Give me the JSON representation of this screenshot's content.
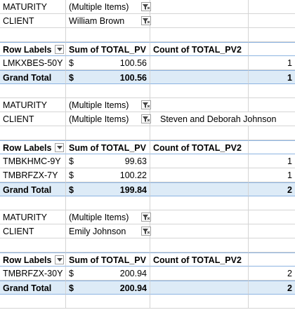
{
  "blocks": [
    {
      "filters": [
        {
          "label": "MATURITY",
          "value": "(Multiple Items)"
        },
        {
          "label": "CLIENT",
          "value": "William Brown"
        }
      ],
      "note": "",
      "headers": {
        "row_labels": "Row Labels",
        "sum": "Sum of TOTAL_PV",
        "count": "Count of TOTAL_PV2"
      },
      "rows": [
        {
          "label": "LMKXBES-50Y",
          "currency": "$",
          "sum": "100.56",
          "count": "1"
        }
      ],
      "total": {
        "label": "Grand Total",
        "currency": "$",
        "sum": "100.56",
        "count": "1"
      }
    },
    {
      "filters": [
        {
          "label": "MATURITY",
          "value": "(Multiple Items)"
        },
        {
          "label": "CLIENT",
          "value": "(Multiple Items)"
        }
      ],
      "note": "Steven and Deborah Johnson",
      "headers": {
        "row_labels": "Row Labels",
        "sum": "Sum of TOTAL_PV",
        "count": "Count of TOTAL_PV2"
      },
      "rows": [
        {
          "label": "TMBKHMC-9Y",
          "currency": "$",
          "sum": "99.63",
          "count": "1"
        },
        {
          "label": "TMBRFZX-7Y",
          "currency": "$",
          "sum": "100.22",
          "count": "1"
        }
      ],
      "total": {
        "label": "Grand Total",
        "currency": "$",
        "sum": "199.84",
        "count": "2"
      }
    },
    {
      "filters": [
        {
          "label": "MATURITY",
          "value": "(Multiple Items)"
        },
        {
          "label": "CLIENT",
          "value": "Emily Johnson"
        }
      ],
      "note": "",
      "headers": {
        "row_labels": "Row Labels",
        "sum": "Sum of TOTAL_PV",
        "count": "Count of TOTAL_PV2"
      },
      "rows": [
        {
          "label": "TMBRFZX-30Y",
          "currency": "$",
          "sum": "200.94",
          "count": "2"
        }
      ],
      "total": {
        "label": "Grand Total",
        "currency": "$",
        "sum": "200.94",
        "count": "2"
      }
    }
  ],
  "icons": {
    "filter": "filter-funnel-icon",
    "dropdown": "dropdown-arrow-icon"
  }
}
